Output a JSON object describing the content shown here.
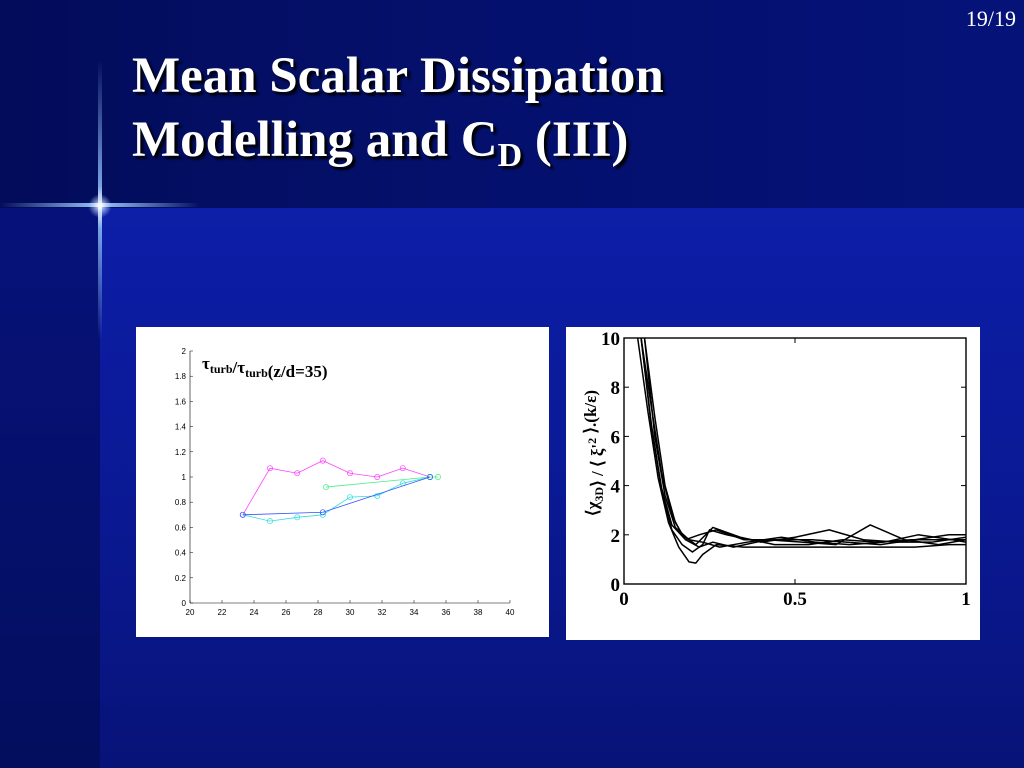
{
  "slide": {
    "page_number": "19/19",
    "title_line1": "Mean Scalar Dissipation",
    "title_line2_main": "Modelling and C",
    "title_line2_sub": "D",
    "title_line2_end": " (III)"
  },
  "colors": {
    "background": "#0a1680",
    "title_text": "#ffffff",
    "panel": "#ffffff",
    "series_magenta": "#ff44ff",
    "series_cyan": "#33dddd",
    "series_green": "#44ee88",
    "series_blue": "#3355ff"
  },
  "chart_data": [
    {
      "type": "line",
      "title": "",
      "xlabel": "",
      "ylabel": "",
      "annotation": {
        "parts": [
          {
            "text": "τ",
            "sub": false
          },
          {
            "text": "turb",
            "sub": true
          },
          {
            "text": "/τ",
            "sub": false
          },
          {
            "text": "turb",
            "sub": true
          },
          {
            "text": "(z/d=35)",
            "sub": false
          }
        ]
      },
      "xlim": [
        20,
        40
      ],
      "ylim": [
        0,
        2
      ],
      "x_ticks": [
        20,
        22,
        24,
        26,
        28,
        30,
        32,
        34,
        36,
        38,
        40
      ],
      "y_ticks": [
        0,
        0.2,
        0.4,
        0.6,
        0.8,
        1,
        1.2,
        1.4,
        1.6,
        1.8,
        2
      ],
      "x_tick_labels": [
        "20",
        "22",
        "24",
        "26",
        "28",
        "30",
        "32",
        "34",
        "36",
        "38",
        "40"
      ],
      "y_tick_labels": [
        "0",
        "0.2",
        "0.4",
        "0.6",
        "0.8",
        "1",
        "1.2",
        "1.4",
        "1.6",
        "1.8",
        "2"
      ],
      "grid": false,
      "series": [
        {
          "color": "#ff44ff",
          "x": [
            23.3,
            25,
            26.7,
            28.3,
            30,
            31.7,
            33.3,
            35
          ],
          "y": [
            0.7,
            1.07,
            1.03,
            1.13,
            1.03,
            1.0,
            1.07,
            1.0
          ]
        },
        {
          "color": "#33dddd",
          "x": [
            23.3,
            25,
            26.7,
            28.3,
            30,
            31.7,
            33.3,
            35
          ],
          "y": [
            0.7,
            0.65,
            0.68,
            0.7,
            0.84,
            0.85,
            0.95,
            1.0
          ]
        },
        {
          "color": "#44ee88",
          "x": [
            28.5,
            35,
            35.5
          ],
          "y": [
            0.92,
            1.0,
            1.0
          ]
        },
        {
          "color": "#3355ff",
          "x": [
            23.3,
            28.3,
            35
          ],
          "y": [
            0.7,
            0.72,
            1.0
          ]
        }
      ]
    },
    {
      "type": "line",
      "title": "",
      "xlabel": "",
      "ylabel": "⟨χ3D⟩ / ⟨ ξ'2 ⟩.(k/ε)",
      "ylabel_parts": [
        {
          "text": "⟨χ",
          "shift": "none"
        },
        {
          "text": "3D",
          "shift": "sub"
        },
        {
          "text": "⟩ / ⟨ ξ'",
          "shift": "none"
        },
        {
          "text": "2",
          "shift": "super"
        },
        {
          "text": " ⟩.(k/ε)",
          "shift": "none"
        }
      ],
      "xlim": [
        0,
        1
      ],
      "ylim": [
        0,
        10
      ],
      "x_ticks": [
        0,
        0.5,
        1
      ],
      "y_ticks": [
        0,
        2,
        4,
        6,
        8,
        10
      ],
      "x_tick_labels": [
        "0",
        "0.5",
        "1"
      ],
      "y_tick_labels": [
        "0",
        "2",
        "4",
        "6",
        "8",
        "10"
      ],
      "grid": false,
      "series": [
        {
          "x": [
            0.04,
            0.07,
            0.1,
            0.13,
            0.16,
            0.19,
            0.21,
            0.23,
            0.27,
            0.35,
            0.45,
            0.55,
            0.65,
            0.75,
            0.85,
            0.95,
            1.0
          ],
          "y": [
            10,
            7.0,
            4.3,
            2.5,
            1.5,
            0.9,
            0.85,
            1.2,
            1.6,
            1.5,
            1.5,
            1.5,
            1.5,
            1.5,
            1.5,
            1.6,
            1.6
          ]
        },
        {
          "x": [
            0.05,
            0.08,
            0.11,
            0.14,
            0.17,
            0.2,
            0.23,
            0.25,
            0.3,
            0.4,
            0.5,
            0.6,
            0.7,
            0.8,
            0.9,
            1.0
          ],
          "y": [
            10,
            6.5,
            3.8,
            2.2,
            1.6,
            1.3,
            1.6,
            2.2,
            2.0,
            1.7,
            1.9,
            2.2,
            1.8,
            1.7,
            1.7,
            1.9
          ]
        },
        {
          "x": [
            0.06,
            0.09,
            0.12,
            0.15,
            0.18,
            0.22,
            0.26,
            0.32,
            0.42,
            0.52,
            0.62,
            0.72,
            0.82,
            0.92,
            1.0
          ],
          "y": [
            10,
            6.8,
            4.0,
            2.5,
            1.8,
            1.5,
            1.7,
            1.5,
            1.8,
            1.7,
            1.6,
            2.4,
            1.8,
            1.6,
            1.8
          ]
        },
        {
          "x": [
            0.05,
            0.08,
            0.11,
            0.14,
            0.17,
            0.21,
            0.26,
            0.34,
            0.44,
            0.54,
            0.64,
            0.74,
            0.84,
            0.94,
            1.0
          ],
          "y": [
            10,
            7.2,
            4.5,
            2.8,
            2.0,
            1.6,
            2.3,
            1.9,
            1.6,
            1.6,
            1.8,
            1.7,
            1.8,
            1.8,
            1.8
          ]
        },
        {
          "x": [
            0.06,
            0.09,
            0.12,
            0.15,
            0.19,
            0.23,
            0.28,
            0.36,
            0.46,
            0.56,
            0.66,
            0.76,
            0.86,
            0.96,
            1.0
          ],
          "y": [
            10,
            6.0,
            3.6,
            2.3,
            1.8,
            1.7,
            1.5,
            1.7,
            1.9,
            1.7,
            1.6,
            1.7,
            2.0,
            1.8,
            1.7
          ]
        },
        {
          "x": [
            0.05,
            0.08,
            0.11,
            0.14,
            0.18,
            0.22,
            0.27,
            0.35,
            0.45,
            0.55,
            0.65,
            0.75,
            0.85,
            0.95,
            1.0
          ],
          "y": [
            10,
            6.4,
            3.9,
            2.4,
            1.8,
            2.0,
            2.2,
            1.8,
            1.8,
            1.8,
            1.7,
            1.6,
            1.8,
            2.0,
            2.0
          ]
        }
      ]
    }
  ]
}
